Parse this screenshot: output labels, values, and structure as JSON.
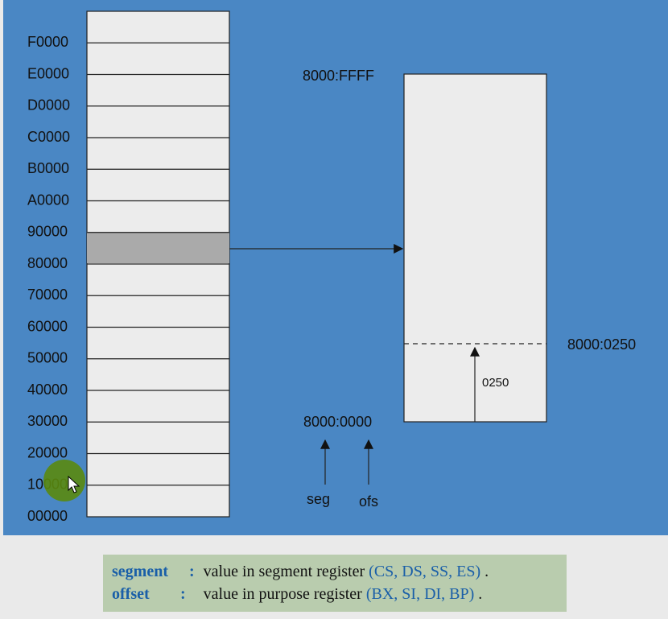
{
  "memory_map": {
    "addresses": [
      "F0000",
      "E0000",
      "D0000",
      "C0000",
      "B0000",
      "A0000",
      "90000",
      "80000",
      "70000",
      "60000",
      "50000",
      "40000",
      "30000",
      "20000",
      "10000",
      "00000"
    ],
    "highlight_color": "#aaaaaa"
  },
  "segment_view": {
    "top_label": "8000:FFFF",
    "bottom_label": "8000:0000",
    "offset_label": "8000:0250",
    "offset_arrow_label": "0250",
    "seg_label": "seg",
    "ofs_label": "ofs"
  },
  "legend": {
    "rows": [
      {
        "term": "segment",
        "sep": ":",
        "text": "value in segment register",
        "regs": "(CS, DS, SS, ES)",
        "end": "."
      },
      {
        "term": "offset",
        "sep": ":",
        "text": "value in purpose register",
        "regs": "(BX, SI, DI, BP)",
        "end": "."
      }
    ]
  },
  "colors": {
    "slide_bg": "#4a87c4",
    "legend_bg": "#b9ccae",
    "legend_term": "#1a5fa8"
  }
}
